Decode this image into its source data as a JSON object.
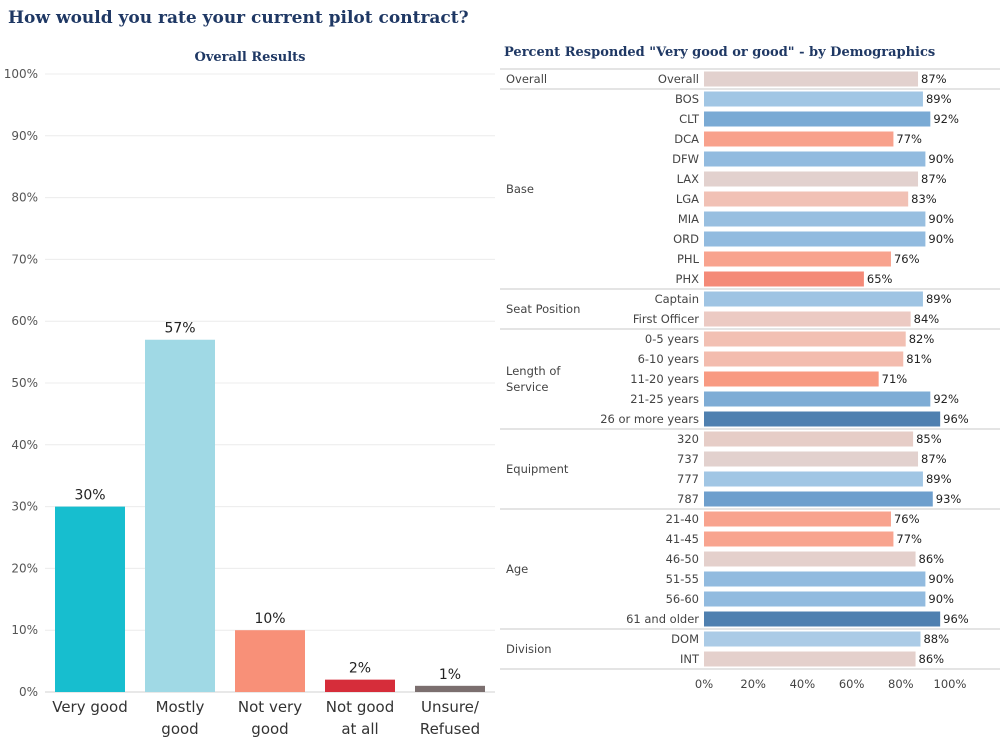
{
  "title": "How would you rate your current pilot contract?",
  "chart_data": [
    {
      "type": "bar",
      "title": "Overall Results",
      "categories": [
        "Very good",
        "Mostly good",
        "Not very good",
        "Not good at all",
        "Unsure/ Refused"
      ],
      "category_lines": [
        [
          "Very good"
        ],
        [
          "Mostly",
          "good"
        ],
        [
          "Not very",
          "good"
        ],
        [
          "Not good",
          "at all"
        ],
        [
          "Unsure/",
          "Refused"
        ]
      ],
      "values": [
        30,
        57,
        10,
        2,
        1
      ],
      "value_labels": [
        "30%",
        "57%",
        "10%",
        "2%",
        "1%"
      ],
      "colors": [
        "#17becf",
        "#a0d9e5",
        "#f89078",
        "#d62d3a",
        "#7b6f6f"
      ],
      "ylim": [
        0,
        100
      ],
      "ytick_values": [
        0,
        10,
        20,
        30,
        40,
        50,
        60,
        70,
        80,
        90,
        100
      ],
      "ytick_labels": [
        "0%",
        "10%",
        "20%",
        "30%",
        "40%",
        "50%",
        "60%",
        "70%",
        "80%",
        "90%",
        "100%"
      ],
      "grid": true
    },
    {
      "type": "bar",
      "orientation": "horizontal",
      "title": "Percent Responded \"Very good or good\" - by Demographics",
      "groups": [
        {
          "name": "Overall",
          "items": [
            {
              "label": "Overall",
              "value": 87,
              "value_label": "87%",
              "color": "#e2d1ce"
            }
          ]
        },
        {
          "name": "Base",
          "items": [
            {
              "label": "BOS",
              "value": 89,
              "value_label": "89%",
              "color": "#a1c6e4"
            },
            {
              "label": "CLT",
              "value": 92,
              "value_label": "92%",
              "color": "#7aaad4"
            },
            {
              "label": "DCA",
              "value": 77,
              "value_label": "77%",
              "color": "#f8a18c"
            },
            {
              "label": "DFW",
              "value": 90,
              "value_label": "90%",
              "color": "#92bbdf"
            },
            {
              "label": "LAX",
              "value": 87,
              "value_label": "87%",
              "color": "#e2d1ce"
            },
            {
              "label": "LGA",
              "value": 83,
              "value_label": "83%",
              "color": "#f1c1b5"
            },
            {
              "label": "MIA",
              "value": 90,
              "value_label": "90%",
              "color": "#98bfe0"
            },
            {
              "label": "ORD",
              "value": 90,
              "value_label": "90%",
              "color": "#92bbdf"
            },
            {
              "label": "PHL",
              "value": 76,
              "value_label": "76%",
              "color": "#f8a38e"
            },
            {
              "label": "PHX",
              "value": 65,
              "value_label": "65%",
              "color": "#f48a78"
            }
          ]
        },
        {
          "name": "Seat Position",
          "items": [
            {
              "label": "Captain",
              "value": 89,
              "value_label": "89%",
              "color": "#9fc4e3"
            },
            {
              "label": "First Officer",
              "value": 84,
              "value_label": "84%",
              "color": "#eccac3"
            }
          ]
        },
        {
          "name": "Length of Service",
          "name_lines": [
            "Length of",
            "Service"
          ],
          "items": [
            {
              "label": "0-5 years",
              "value": 82,
              "value_label": "82%",
              "color": "#f2c0b3"
            },
            {
              "label": "6-10 years",
              "value": 81,
              "value_label": "81%",
              "color": "#f3bcae"
            },
            {
              "label": "11-20 years",
              "value": 71,
              "value_label": "71%",
              "color": "#f89a82"
            },
            {
              "label": "21-25 years",
              "value": 92,
              "value_label": "92%",
              "color": "#7eacd5"
            },
            {
              "label": "26 or more years",
              "value": 96,
              "value_label": "96%",
              "color": "#4f80b0"
            }
          ]
        },
        {
          "name": "Equipment",
          "items": [
            {
              "label": "320",
              "value": 85,
              "value_label": "85%",
              "color": "#e6cdc7"
            },
            {
              "label": "737",
              "value": 87,
              "value_label": "87%",
              "color": "#e2d1ce"
            },
            {
              "label": "777",
              "value": 89,
              "value_label": "89%",
              "color": "#a1c6e4"
            },
            {
              "label": "787",
              "value": 93,
              "value_label": "93%",
              "color": "#6e9fcd"
            }
          ]
        },
        {
          "name": "Age",
          "items": [
            {
              "label": "21-40",
              "value": 76,
              "value_label": "76%",
              "color": "#f8a38e"
            },
            {
              "label": "41-45",
              "value": 77,
              "value_label": "77%",
              "color": "#f8a48f"
            },
            {
              "label": "46-50",
              "value": 86,
              "value_label": "86%",
              "color": "#e4d0cc"
            },
            {
              "label": "51-55",
              "value": 90,
              "value_label": "90%",
              "color": "#92bbdf"
            },
            {
              "label": "56-60",
              "value": 90,
              "value_label": "90%",
              "color": "#92bbdf"
            },
            {
              "label": "61 and older",
              "value": 96,
              "value_label": "96%",
              "color": "#4f80b0"
            }
          ]
        },
        {
          "name": "Division",
          "items": [
            {
              "label": "DOM",
              "value": 88,
              "value_label": "88%",
              "color": "#abcbe6"
            },
            {
              "label": "INT",
              "value": 86,
              "value_label": "86%",
              "color": "#e4d0cc"
            }
          ]
        }
      ],
      "xlim": [
        0,
        100
      ],
      "xtick_values": [
        0,
        20,
        40,
        60,
        80,
        100
      ],
      "xtick_labels": [
        "0%",
        "20%",
        "40%",
        "60%",
        "80%",
        "100%"
      ]
    }
  ]
}
